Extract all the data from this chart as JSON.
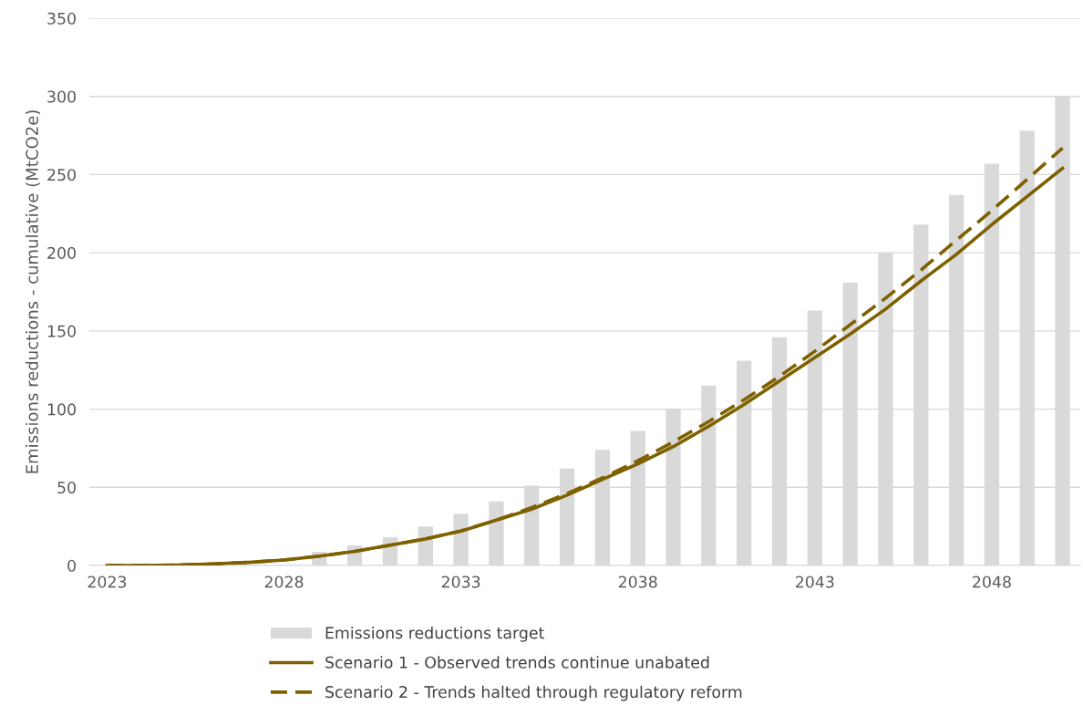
{
  "chart_data": {
    "type": "bar",
    "ylabel": "Emissions reductions - cumulative (MtCO2e)",
    "categories": [
      "2023",
      null,
      null,
      null,
      null,
      "2028",
      null,
      null,
      null,
      null,
      "2033",
      null,
      null,
      null,
      null,
      "2038",
      null,
      null,
      null,
      null,
      "2043",
      null,
      null,
      null,
      null,
      "2048",
      null,
      null
    ],
    "series": [
      {
        "name": "Emissions reductions target",
        "color": "#d9d9d9",
        "values": [
          null,
          null,
          null,
          null,
          null,
          null,
          8.7,
          12.8,
          18,
          25,
          33,
          41,
          51,
          62,
          74,
          86,
          100,
          115,
          131,
          146,
          163,
          181,
          200,
          218,
          237,
          257,
          278,
          300
        ]
      },
      {
        "name": "Scenario 1 - Observed trends continue unabated",
        "type": "line",
        "line_style": "solid",
        "color": "#7f6000",
        "values": [
          0,
          0,
          0.3,
          1,
          2,
          3.5,
          6,
          9,
          13,
          17,
          22,
          29,
          36,
          45,
          55,
          65,
          76,
          89,
          103,
          118,
          133,
          148,
          164,
          182,
          199,
          218,
          236,
          254
        ]
      },
      {
        "name": "Scenario 2 - Trends halted through regulatory reform",
        "type": "line",
        "line_style": "dashed",
        "color": "#7f6000",
        "values": [
          0,
          0,
          0.3,
          1,
          2,
          3.5,
          6,
          9,
          13,
          17,
          22,
          29,
          37,
          46,
          56,
          67,
          79,
          92,
          106,
          121,
          137,
          154,
          171,
          189,
          208,
          227,
          247,
          267
        ]
      }
    ],
    "ylim": [
      0,
      350
    ],
    "yticks": [
      0,
      50,
      100,
      150,
      200,
      250,
      300,
      350
    ],
    "grid": "y",
    "legend": "bottom",
    "marker": "none"
  }
}
